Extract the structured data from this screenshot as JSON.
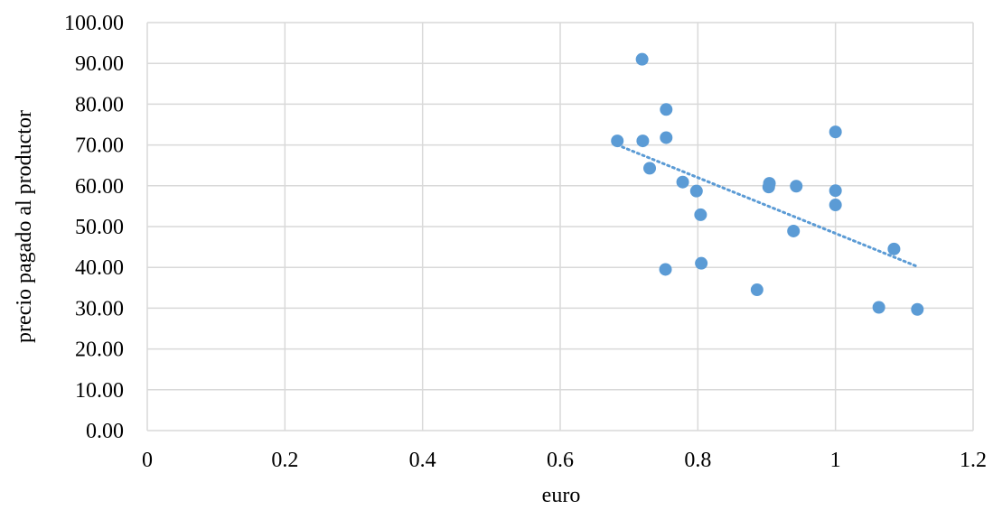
{
  "chart_data": {
    "type": "scatter",
    "title": "",
    "xlabel": "euro",
    "ylabel": "precio pagado al productor",
    "xlim": [
      0,
      1.2
    ],
    "ylim": [
      0,
      100
    ],
    "x_ticks": [
      "0",
      "0.2",
      "0.4",
      "0.6",
      "0.8",
      "1",
      "1.2"
    ],
    "y_ticks": [
      "0.00",
      "10.00",
      "20.00",
      "30.00",
      "40.00",
      "50.00",
      "60.00",
      "70.00",
      "80.00",
      "90.00",
      "100.00"
    ],
    "grid": true,
    "legend": "none",
    "series": [
      {
        "color": "#5b9bd5",
        "points": [
          {
            "x": 0.683,
            "y": 71.0
          },
          {
            "x": 0.719,
            "y": 91.0
          },
          {
            "x": 0.72,
            "y": 71.0
          },
          {
            "x": 0.73,
            "y": 64.3
          },
          {
            "x": 0.754,
            "y": 78.7
          },
          {
            "x": 0.754,
            "y": 71.8
          },
          {
            "x": 0.753,
            "y": 39.5
          },
          {
            "x": 0.778,
            "y": 60.9
          },
          {
            "x": 0.798,
            "y": 58.7
          },
          {
            "x": 0.804,
            "y": 52.9
          },
          {
            "x": 0.805,
            "y": 41.0
          },
          {
            "x": 0.886,
            "y": 34.5
          },
          {
            "x": 0.903,
            "y": 59.7
          },
          {
            "x": 0.904,
            "y": 60.6
          },
          {
            "x": 0.939,
            "y": 48.9
          },
          {
            "x": 0.943,
            "y": 59.9
          },
          {
            "x": 1.0,
            "y": 73.2
          },
          {
            "x": 1.0,
            "y": 58.8
          },
          {
            "x": 1.0,
            "y": 55.3
          },
          {
            "x": 1.063,
            "y": 30.2
          },
          {
            "x": 1.085,
            "y": 44.5
          },
          {
            "x": 1.119,
            "y": 29.7
          }
        ]
      }
    ],
    "trendline": {
      "type": "linear",
      "style": "dotted",
      "color": "#5b9bd5",
      "from": {
        "x": 0.683,
        "y": 70.0
      },
      "to": {
        "x": 1.119,
        "y": 40.2
      }
    }
  }
}
